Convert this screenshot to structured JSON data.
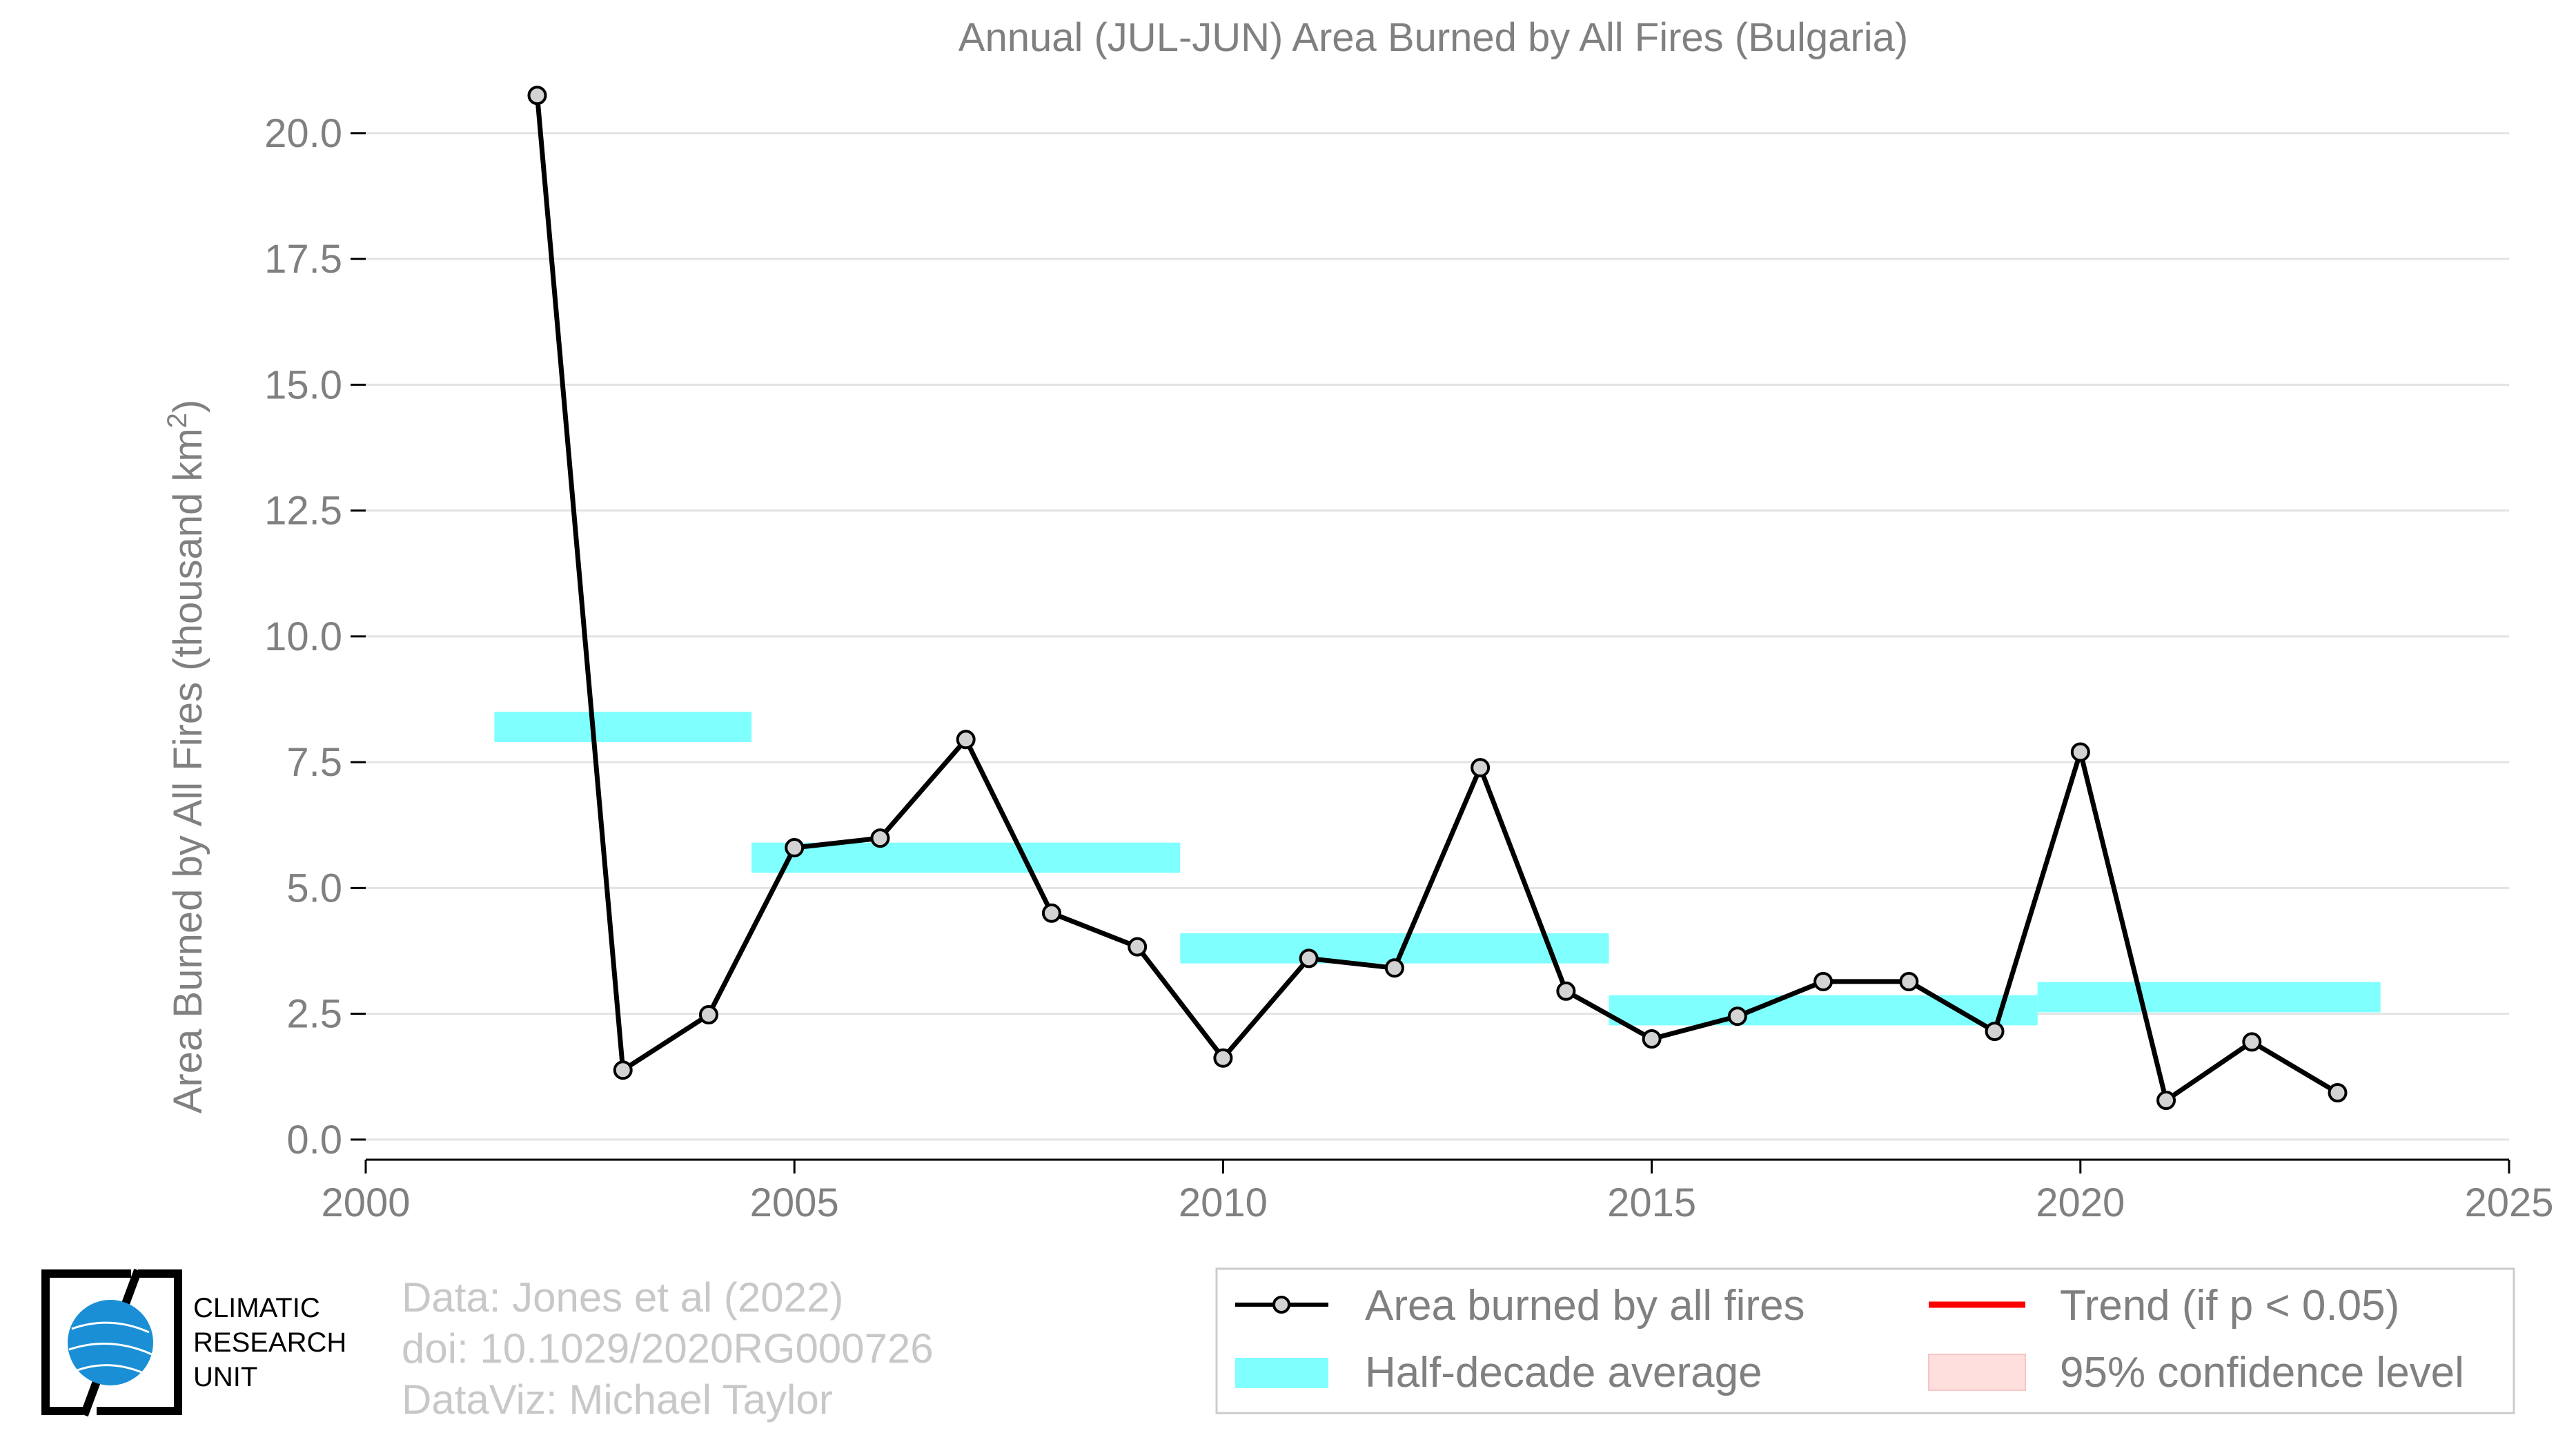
{
  "chart_data": {
    "type": "line",
    "title": "Annual (JUL-JUN) Area Burned by All Fires (Bulgaria)",
    "xlabel": "",
    "ylabel": "Area Burned by All Fires (thousand km",
    "ylabel_superscript": "2",
    "ylabel_suffix": ")",
    "xlim": [
      2000,
      2025
    ],
    "ylim": [
      -0.4,
      21.0
    ],
    "xticks": [
      2000,
      2005,
      2010,
      2015,
      2020,
      2025
    ],
    "yticks": [
      0.0,
      2.5,
      5.0,
      7.5,
      10.0,
      12.5,
      15.0,
      17.5,
      20.0
    ],
    "ytick_labels": [
      "0.0",
      "2.5",
      "5.0",
      "7.5",
      "10.0",
      "12.5",
      "15.0",
      "17.5",
      "20.0"
    ],
    "grid": "horizontal",
    "series": [
      {
        "name": "Area burned by all fires",
        "color": "#000000",
        "marker_fill": "#d3d3d3",
        "x": [
          2002,
          2003,
          2004,
          2005,
          2006,
          2007,
          2008,
          2009,
          2010,
          2011,
          2012,
          2013,
          2014,
          2015,
          2016,
          2017,
          2018,
          2019,
          2020,
          2021,
          2022,
          2023
        ],
        "y": [
          20.75,
          1.38,
          2.48,
          5.8,
          5.99,
          7.95,
          4.5,
          3.83,
          1.62,
          3.6,
          3.41,
          7.39,
          2.95,
          2.0,
          2.45,
          3.14,
          3.14,
          2.15,
          7.7,
          0.78,
          1.94,
          0.93
        ]
      }
    ],
    "half_decade_averages": {
      "name": "Half-decade average",
      "color": "#80ffff",
      "segments": [
        {
          "x0": 2001.5,
          "x1": 2004.5,
          "y": 8.2
        },
        {
          "x0": 2004.5,
          "x1": 2009.5,
          "y": 5.6
        },
        {
          "x0": 2009.5,
          "x1": 2014.5,
          "y": 3.8
        },
        {
          "x0": 2014.5,
          "x1": 2019.5,
          "y": 2.57
        },
        {
          "x0": 2019.5,
          "x1": 2023.5,
          "y": 2.83
        }
      ]
    },
    "legend": {
      "placement": "bottom-right",
      "items": [
        {
          "label": "Area burned by all fires",
          "kind": "line-marker",
          "color": "#000000"
        },
        {
          "label": "Trend (if p < 0.05)",
          "kind": "line",
          "color": "#ff0000"
        },
        {
          "label": "Half-decade average",
          "kind": "band",
          "color": "#80ffff"
        },
        {
          "label": "95% confidence level",
          "kind": "patch",
          "color": "#ffdede"
        }
      ]
    }
  },
  "credits": {
    "line1": "Data: Jones et al (2022)",
    "line2": "doi: 10.1029/2020RG000726",
    "line3": "DataViz: Michael Taylor"
  },
  "logo": {
    "line1": "CLIMATIC",
    "line2": "RESEARCH",
    "line3": "UNIT",
    "globe_color": "#1a8fd6"
  }
}
